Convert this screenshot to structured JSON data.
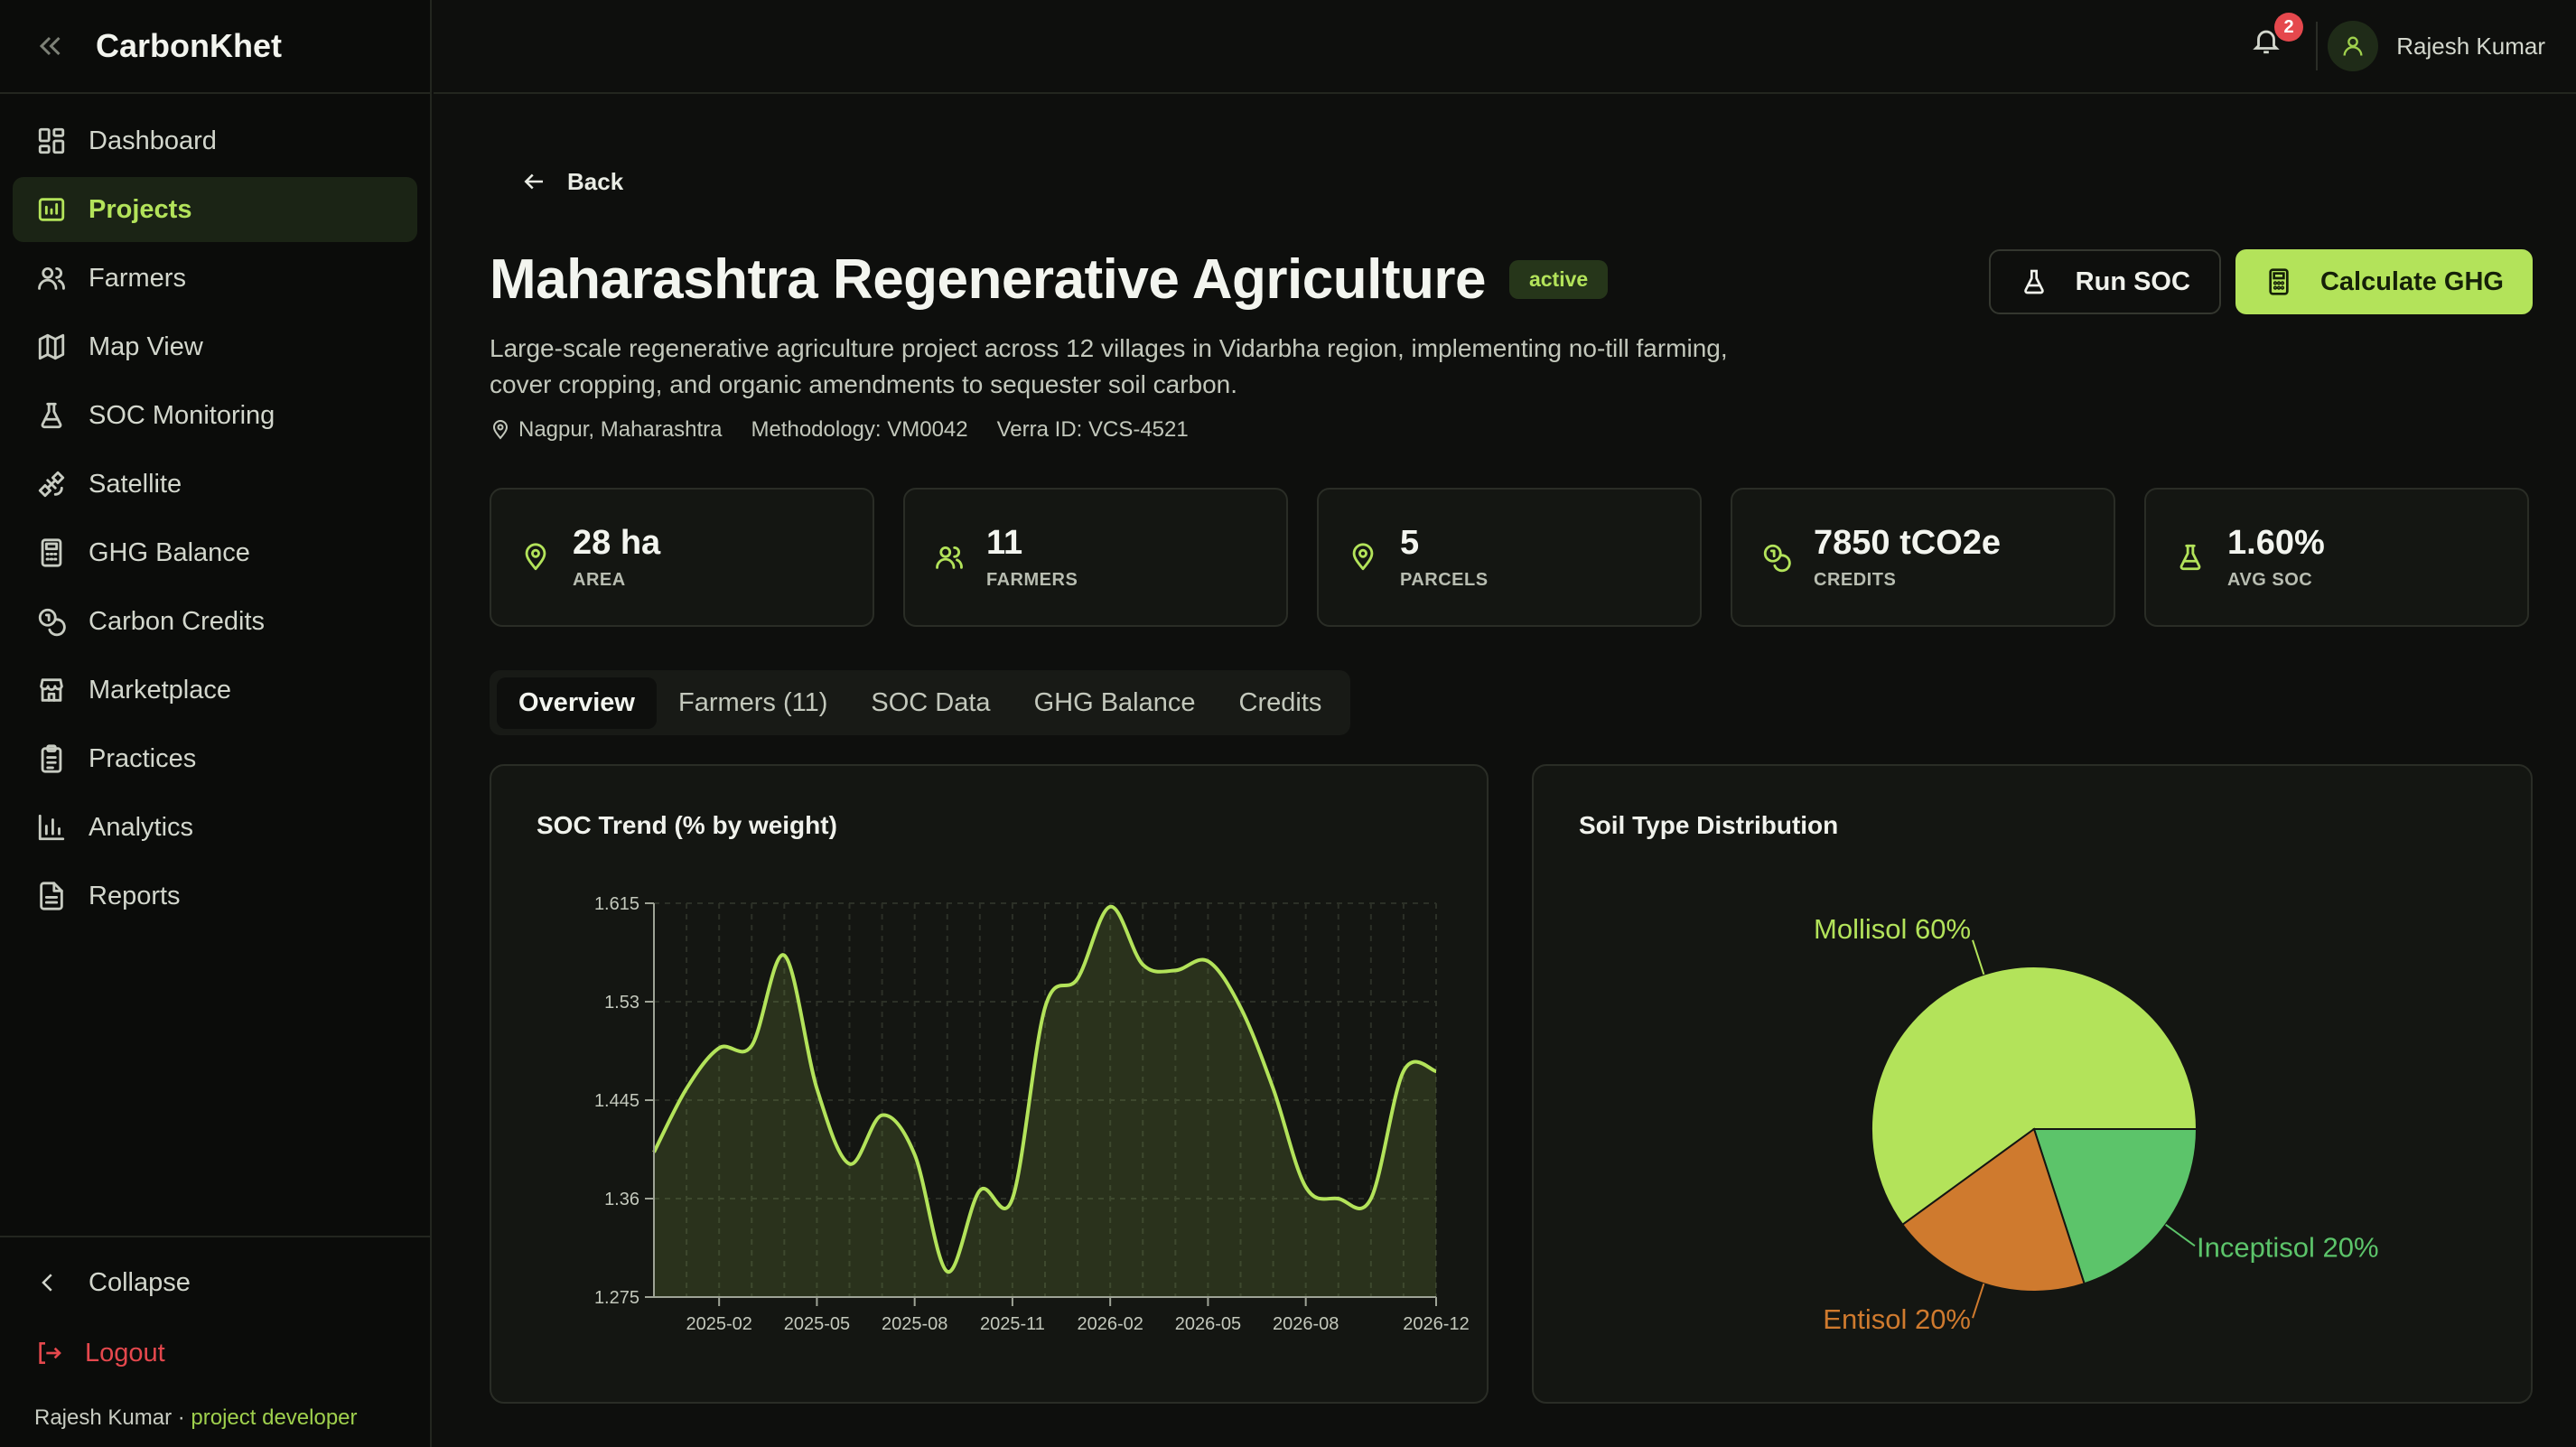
{
  "app": {
    "name": "CarbonKhet"
  },
  "sidebar": {
    "items": [
      {
        "label": "Dashboard",
        "icon": "dashboard-icon"
      },
      {
        "label": "Projects",
        "icon": "projects-icon",
        "active": true
      },
      {
        "label": "Farmers",
        "icon": "users-icon"
      },
      {
        "label": "Map View",
        "icon": "map-icon"
      },
      {
        "label": "SOC Monitoring",
        "icon": "flask-icon"
      },
      {
        "label": "Satellite",
        "icon": "satellite-icon"
      },
      {
        "label": "GHG Balance",
        "icon": "calculator-icon"
      },
      {
        "label": "Carbon Credits",
        "icon": "coins-icon"
      },
      {
        "label": "Marketplace",
        "icon": "store-icon"
      },
      {
        "label": "Practices",
        "icon": "clipboard-icon"
      },
      {
        "label": "Analytics",
        "icon": "bar-chart-icon"
      },
      {
        "label": "Reports",
        "icon": "file-icon"
      }
    ],
    "collapse_label": "Collapse",
    "logout_label": "Logout",
    "user_name": "Rajesh Kumar · ",
    "user_role": "project developer"
  },
  "topbar": {
    "notification_count": "2",
    "user_name": "Rajesh Kumar"
  },
  "project": {
    "back_label": "Back",
    "title": "Maharashtra Regenerative Agriculture",
    "status": "active",
    "description": "Large-scale regenerative agriculture project across 12 villages in Vidarbha region, implementing no-till farming, cover cropping, and organic amendments to sequester soil carbon.",
    "location": "Nagpur, Maharashtra",
    "methodology": "Methodology: VM0042",
    "verra_id": "Verra ID: VCS-4521",
    "run_soc_label": "Run SOC",
    "calc_ghg_label": "Calculate GHG"
  },
  "stats": [
    {
      "value": "28 ha",
      "label": "AREA",
      "icon": "map-pin-icon"
    },
    {
      "value": "11",
      "label": "FARMERS",
      "icon": "users-icon"
    },
    {
      "value": "5",
      "label": "PARCELS",
      "icon": "map-pin-icon"
    },
    {
      "value": "7850 tCO2e",
      "label": "CREDITS",
      "icon": "coins-icon"
    },
    {
      "value": "1.60%",
      "label": "AVG SOC",
      "icon": "flask-icon"
    }
  ],
  "tabs": [
    {
      "label": "Overview",
      "active": true
    },
    {
      "label": "Farmers (11)"
    },
    {
      "label": "SOC Data"
    },
    {
      "label": "GHG Balance"
    },
    {
      "label": "Credits"
    }
  ],
  "colors": {
    "accent": "#b3e35a",
    "mollisol": "#b3e35a",
    "inceptisol": "#5cc46a",
    "entisol": "#cf7a2e",
    "danger": "#e5484d"
  },
  "chart_data": [
    {
      "type": "area",
      "title": "SOC Trend (% by weight)",
      "x_ticks": [
        "2025-02",
        "2025-05",
        "2025-08",
        "2025-11",
        "2026-02",
        "2026-05",
        "2026-08",
        "2026-12"
      ],
      "y_ticks": [
        "1.275",
        "1.36",
        "1.445",
        "1.53",
        "1.615"
      ],
      "ylim": [
        1.275,
        1.615
      ],
      "grid": true,
      "x": [
        "2024-12",
        "2025-01",
        "2025-02",
        "2025-03",
        "2025-04",
        "2025-05",
        "2025-06",
        "2025-07",
        "2025-08",
        "2025-09",
        "2025-10",
        "2025-11",
        "2025-12",
        "2026-01",
        "2026-02",
        "2026-03",
        "2026-04",
        "2026-05",
        "2026-06",
        "2026-07",
        "2026-08",
        "2026-09",
        "2026-10",
        "2026-11",
        "2026-12"
      ],
      "values": [
        1.4,
        1.455,
        1.49,
        1.492,
        1.57,
        1.455,
        1.39,
        1.432,
        1.398,
        1.297,
        1.367,
        1.36,
        1.525,
        1.55,
        1.612,
        1.562,
        1.557,
        1.565,
        1.525,
        1.455,
        1.37,
        1.36,
        1.36,
        1.47,
        1.47
      ]
    },
    {
      "type": "pie",
      "title": "Soil Type Distribution",
      "slices": [
        {
          "label": "Mollisol 60%",
          "value": 60
        },
        {
          "label": "Inceptisol 20%",
          "value": 20
        },
        {
          "label": "Entisol 20%",
          "value": 20
        }
      ]
    }
  ]
}
